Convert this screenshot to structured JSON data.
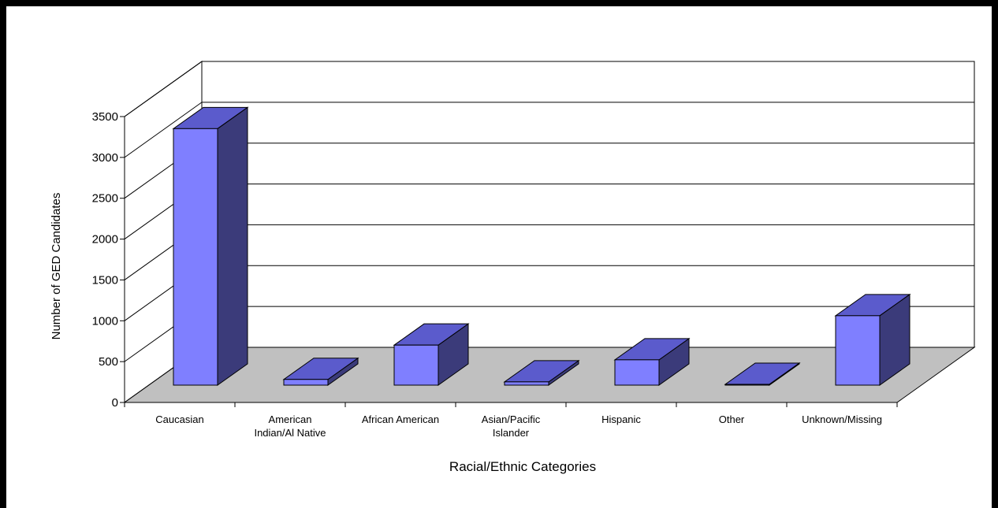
{
  "chart_data": {
    "type": "bar",
    "style": "3d-column",
    "categories": [
      [
        "Caucasian"
      ],
      [
        "American",
        "Indian/Al Native"
      ],
      [
        "African American"
      ],
      [
        "Asian/Pacific",
        "Islander"
      ],
      [
        "Hispanic"
      ],
      [
        "Other"
      ],
      [
        "Unknown/Missing"
      ]
    ],
    "values": [
      3140,
      70,
      490,
      40,
      310,
      10,
      850
    ],
    "xlabel": "Racial/Ethnic Categories",
    "ylabel": "Number of GED Candidates",
    "ylim": [
      0,
      3500
    ],
    "yticks": [
      0,
      500,
      1000,
      1500,
      2000,
      2500,
      3000,
      3500
    ],
    "grid": true,
    "legend": "none",
    "colors": {
      "bar_front": "#7f7fff",
      "bar_top": "#5b5bcc",
      "bar_side": "#3b3b7a",
      "floor": "#c0c0c0",
      "frame": "#000000",
      "background": "#ffffff"
    }
  }
}
